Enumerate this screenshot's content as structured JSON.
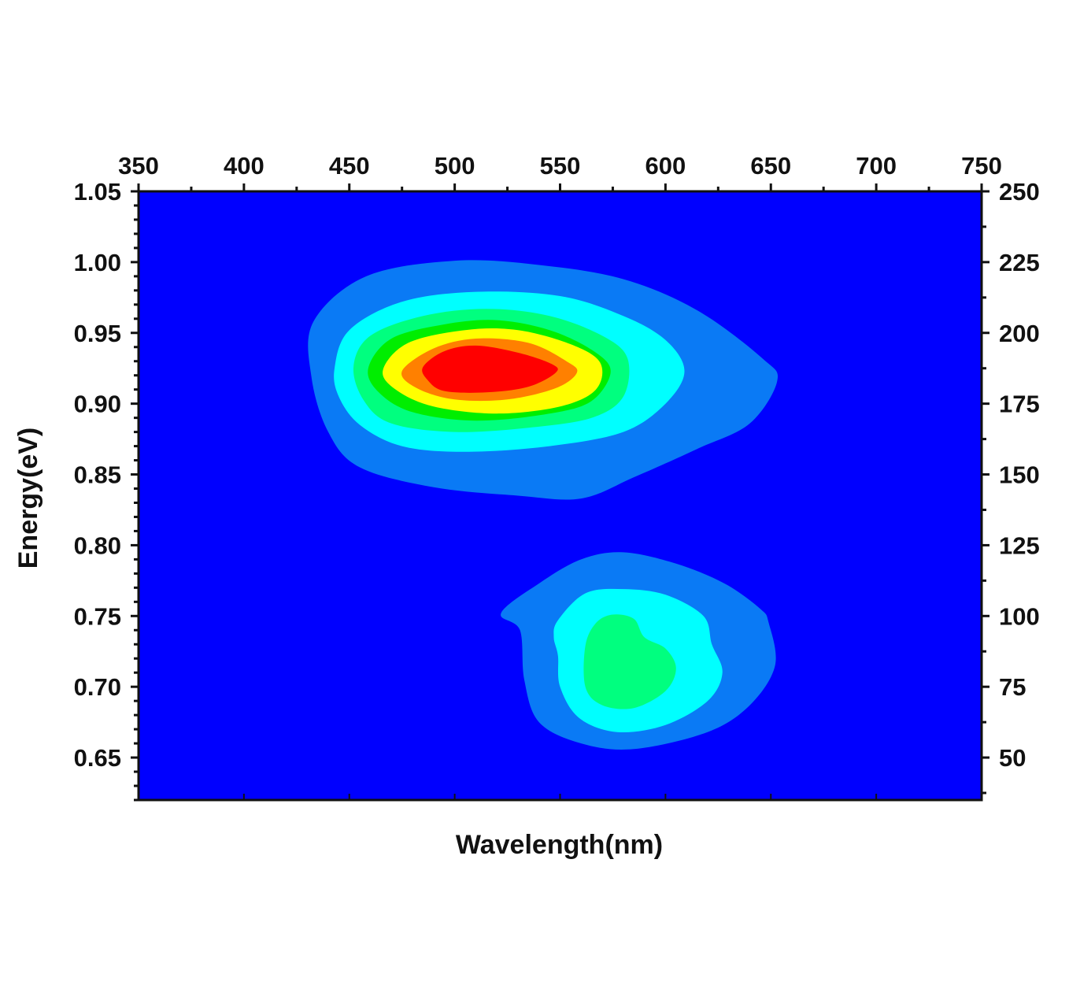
{
  "chart_data": {
    "type": "heatmap",
    "title": "",
    "xlabel": "Wavelength(nm)",
    "ylabel": "Energy(eV)",
    "x_top": {
      "ticks": [
        350,
        400,
        450,
        500,
        550,
        600,
        650,
        700,
        750
      ],
      "labels": [
        "350",
        "400",
        "450",
        "500",
        "550",
        "600",
        "650",
        "700",
        "750"
      ],
      "range": [
        350,
        750
      ]
    },
    "y_left": {
      "ticks": [
        0.65,
        0.7,
        0.75,
        0.8,
        0.85,
        0.9,
        0.95,
        1.0,
        1.05
      ],
      "labels": [
        "0.65",
        "0.70",
        "0.75",
        "0.80",
        "0.85",
        "0.90",
        "0.95",
        "1.00",
        "1.05"
      ],
      "range": [
        0.62,
        1.05
      ]
    },
    "y_right": {
      "ticks": [
        50,
        75,
        100,
        125,
        150,
        175,
        200,
        225,
        250
      ],
      "labels": [
        "50",
        "75",
        "100",
        "125",
        "150",
        "175",
        "200",
        "225",
        "250"
      ],
      "range": [
        35,
        250
      ]
    },
    "background_color": "#0000ff",
    "level_colors": [
      "#0a7af5",
      "#00ffff",
      "#00ff7f",
      "#00ee00",
      "#ffff00",
      "#ff8000",
      "#ff0000"
    ],
    "contours": [
      {
        "name": "upper-peak",
        "levels": [
          {
            "color": "#0a7af5",
            "points": [
              [
                432,
                0.919
              ],
              [
                433,
                0.958
              ],
              [
                458,
                0.99
              ],
              [
                500,
                1.001
              ],
              [
                540,
                0.998
              ],
              [
                580,
                0.988
              ],
              [
                615,
                0.966
              ],
              [
                646,
                0.932
              ],
              [
                653,
                0.916
              ],
              [
                640,
                0.886
              ],
              [
                615,
                0.868
              ],
              [
                585,
                0.848
              ],
              [
                560,
                0.833
              ],
              [
                530,
                0.835
              ],
              [
                490,
                0.841
              ],
              [
                455,
                0.855
              ],
              [
                440,
                0.88
              ]
            ]
          },
          {
            "color": "#00ffff",
            "points": [
              [
                443,
                0.925
              ],
              [
                450,
                0.952
              ],
              [
                475,
                0.972
              ],
              [
                510,
                0.979
              ],
              [
                550,
                0.976
              ],
              [
                580,
                0.962
              ],
              [
                600,
                0.945
              ],
              [
                609,
                0.923
              ],
              [
                600,
                0.9
              ],
              [
                580,
                0.88
              ],
              [
                545,
                0.87
              ],
              [
                505,
                0.866
              ],
              [
                475,
                0.87
              ],
              [
                455,
                0.885
              ],
              [
                445,
                0.905
              ]
            ]
          },
          {
            "color": "#00ff7f",
            "points": [
              [
                452,
                0.926
              ],
              [
                460,
                0.948
              ],
              [
                485,
                0.962
              ],
              [
                515,
                0.967
              ],
              [
                545,
                0.962
              ],
              [
                570,
                0.948
              ],
              [
                582,
                0.932
              ],
              [
                580,
                0.905
              ],
              [
                565,
                0.89
              ],
              [
                535,
                0.883
              ],
              [
                500,
                0.88
              ],
              [
                470,
                0.886
              ],
              [
                457,
                0.902
              ]
            ]
          },
          {
            "color": "#00ee00",
            "points": [
              [
                459,
                0.925
              ],
              [
                470,
                0.946
              ],
              [
                495,
                0.956
              ],
              [
                520,
                0.959
              ],
              [
                545,
                0.952
              ],
              [
                565,
                0.938
              ],
              [
                574,
                0.923
              ],
              [
                565,
                0.902
              ],
              [
                545,
                0.893
              ],
              [
                510,
                0.888
              ],
              [
                480,
                0.894
              ],
              [
                464,
                0.908
              ]
            ]
          },
          {
            "color": "#ffff00",
            "points": [
              [
                466,
                0.924
              ],
              [
                478,
                0.943
              ],
              [
                505,
                0.952
              ],
              [
                530,
                0.952
              ],
              [
                555,
                0.942
              ],
              [
                569,
                0.929
              ],
              [
                567,
                0.91
              ],
              [
                550,
                0.898
              ],
              [
                520,
                0.893
              ],
              [
                490,
                0.898
              ],
              [
                472,
                0.91
              ]
            ]
          },
          {
            "color": "#ff8000",
            "points": [
              [
                475,
                0.923
              ],
              [
                490,
                0.939
              ],
              [
                510,
                0.946
              ],
              [
                535,
                0.943
              ],
              [
                553,
                0.93
              ],
              [
                558,
                0.922
              ],
              [
                548,
                0.911
              ],
              [
                525,
                0.903
              ],
              [
                500,
                0.903
              ],
              [
                482,
                0.911
              ]
            ]
          },
          {
            "color": "#ff0000",
            "points": [
              [
                485,
                0.926
              ],
              [
                495,
                0.937
              ],
              [
                510,
                0.941
              ],
              [
                530,
                0.936
              ],
              [
                546,
                0.928
              ],
              [
                548,
                0.922
              ],
              [
                535,
                0.912
              ],
              [
                515,
                0.908
              ],
              [
                495,
                0.909
              ],
              [
                487,
                0.917
              ]
            ]
          }
        ]
      },
      {
        "name": "lower-peak",
        "levels": [
          {
            "color": "#0a7af5",
            "points": [
              [
                522,
                0.752
              ],
              [
                540,
                0.773
              ],
              [
                560,
                0.79
              ],
              [
                580,
                0.795
              ],
              [
                605,
                0.787
              ],
              [
                628,
                0.773
              ],
              [
                645,
                0.755
              ],
              [
                649,
                0.745
              ],
              [
                652,
                0.715
              ],
              [
                640,
                0.687
              ],
              [
                620,
                0.668
              ],
              [
                585,
                0.656
              ],
              [
                560,
                0.66
              ],
              [
                540,
                0.675
              ],
              [
                533,
                0.705
              ],
              [
                531,
                0.74
              ]
            ]
          },
          {
            "color": "#00ffff",
            "points": [
              [
                549,
                0.747
              ],
              [
                562,
                0.766
              ],
              [
                580,
                0.769
              ],
              [
                600,
                0.765
              ],
              [
                618,
                0.75
              ],
              [
                622,
                0.73
              ],
              [
                627,
                0.71
              ],
              [
                620,
                0.69
              ],
              [
                600,
                0.673
              ],
              [
                577,
                0.668
              ],
              [
                559,
                0.678
              ],
              [
                550,
                0.7
              ],
              [
                549,
                0.722
              ],
              [
                547,
                0.735
              ]
            ]
          },
          {
            "color": "#00ff7f",
            "points": [
              [
                562,
                0.729
              ],
              [
                567,
                0.745
              ],
              [
                575,
                0.751
              ],
              [
                585,
                0.748
              ],
              [
                590,
                0.735
              ],
              [
                600,
                0.727
              ],
              [
                605,
                0.713
              ],
              [
                600,
                0.697
              ],
              [
                585,
                0.685
              ],
              [
                570,
                0.687
              ],
              [
                562,
                0.7
              ]
            ]
          }
        ]
      }
    ],
    "grid": false
  }
}
